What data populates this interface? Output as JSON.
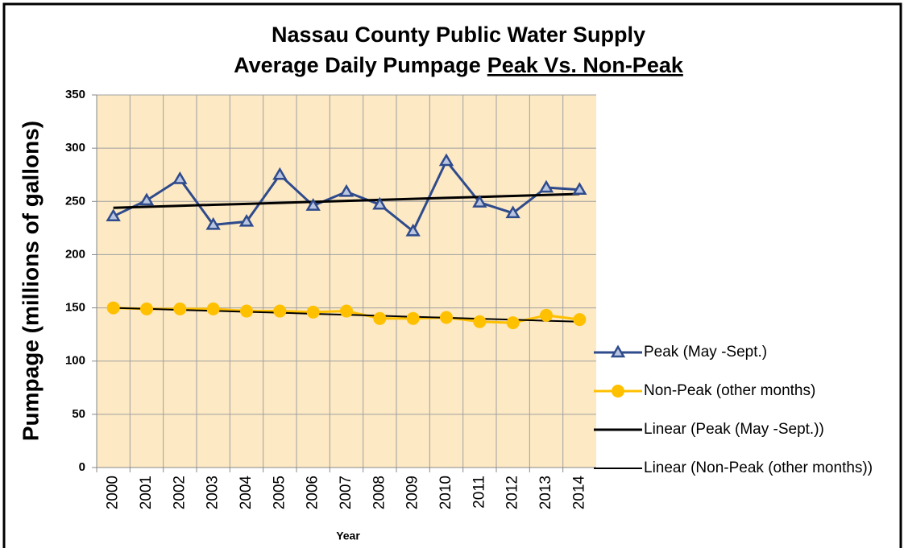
{
  "chart_data": {
    "type": "line",
    "title": [
      "Nassau County Public Water Supply",
      "Average Daily Pumpage"
    ],
    "title_underlined": "Peak Vs. Non-Peak",
    "x_label": "Year",
    "y_label": "Pumpage (millions of gallons)",
    "categories": [
      "2000",
      "2001",
      "2002",
      "2003",
      "2004",
      "2005",
      "2006",
      "2007",
      "2008",
      "2009",
      "2010",
      "2011",
      "2012",
      "2013",
      "2014"
    ],
    "series": [
      {
        "name": "Peak (May -Sept.)",
        "color": "#2f4b8c",
        "marker": "triangle",
        "width": 3,
        "values": [
          236,
          251,
          271,
          228,
          231,
          275,
          246,
          259,
          247,
          222,
          288,
          249,
          239,
          263,
          261
        ]
      },
      {
        "name": "Non-Peak (other months)",
        "color": "#ffc000",
        "marker": "circle",
        "width": 3,
        "values": [
          150,
          149,
          149,
          149,
          147,
          147,
          146,
          147,
          140,
          140,
          141,
          137,
          136,
          143,
          139
        ]
      },
      {
        "name": "Linear (Peak (May -Sept.))",
        "color": "#000000",
        "marker": "none",
        "width": 3,
        "values": [
          244,
          244.9,
          245.9,
          246.8,
          247.7,
          248.6,
          249.6,
          250.5,
          251.4,
          252.4,
          253.3,
          254.2,
          255.1,
          256.1,
          257
        ]
      },
      {
        "name": "Linear (Non-Peak (other months))",
        "color": "#000000",
        "marker": "none",
        "width": 2,
        "values": [
          150,
          149.1,
          148.1,
          147.2,
          146.3,
          145.4,
          144.4,
          143.5,
          142.6,
          141.6,
          140.7,
          139.8,
          138.9,
          137.9,
          137
        ]
      }
    ],
    "ylim": [
      0,
      350
    ],
    "yticks": [
      0,
      50,
      100,
      150,
      200,
      250,
      300,
      350
    ],
    "grid": true,
    "plot_background": "#fde9c4",
    "legend": "right"
  }
}
